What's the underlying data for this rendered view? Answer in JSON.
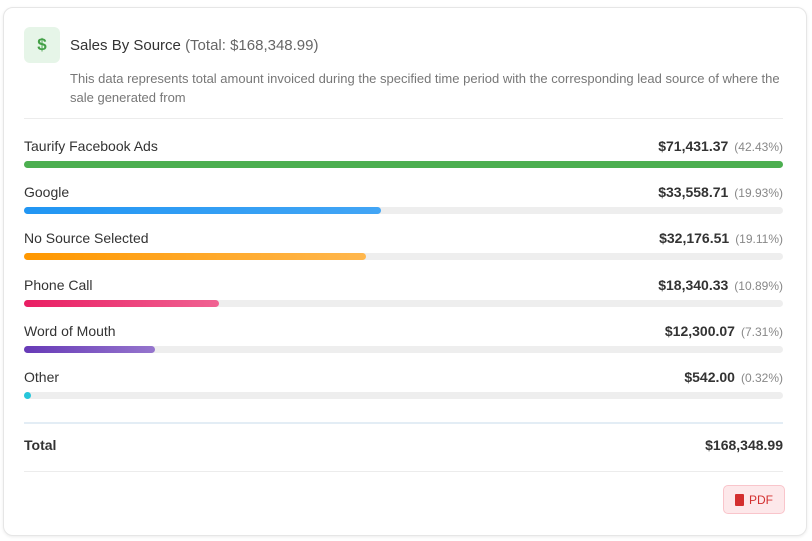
{
  "header": {
    "icon": "dollar-icon",
    "icon_glyph": "$",
    "title": "Sales By Source",
    "total_text": "(Total: $168,348.99)",
    "description": "This data represents total amount invoiced during the specified time period with the corresponding lead source of where the sale generated from"
  },
  "sources": [
    {
      "label": "Taurify Facebook Ads",
      "amount": "$71,431.37",
      "percent_text": "(42.43%)",
      "percent": 42.43,
      "color_from": "#4caf50",
      "color_to": "#4caf50"
    },
    {
      "label": "Google",
      "amount": "$33,558.71",
      "percent_text": "(19.93%)",
      "percent": 19.93,
      "color_from": "#2196f3",
      "color_to": "#42a5f5"
    },
    {
      "label": "No Source Selected",
      "amount": "$32,176.51",
      "percent_text": "(19.11%)",
      "percent": 19.11,
      "color_from": "#ff9800",
      "color_to": "#ffb74d"
    },
    {
      "label": "Phone Call",
      "amount": "$18,340.33",
      "percent_text": "(10.89%)",
      "percent": 10.89,
      "color_from": "#e91e63",
      "color_to": "#f06292"
    },
    {
      "label": "Word of Mouth",
      "amount": "$12,300.07",
      "percent_text": "(7.31%)",
      "percent": 7.31,
      "color_from": "#673ab7",
      "color_to": "#9575cd"
    },
    {
      "label": "Other",
      "amount": "$542.00",
      "percent_text": "(0.32%)",
      "percent": 0.32,
      "color_from": "#26c6da",
      "color_to": "#26c6da"
    }
  ],
  "total": {
    "label": "Total",
    "value": "$168,348.99"
  },
  "actions": {
    "pdf_label": "PDF"
  }
}
